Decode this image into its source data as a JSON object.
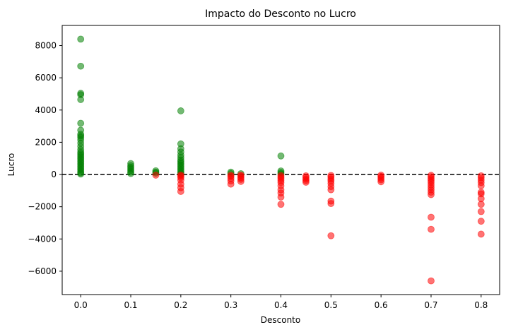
{
  "chart_data": {
    "type": "scatter",
    "title": "Impacto do Desconto no Lucro",
    "xlabel": "Desconto",
    "ylabel": "Lucro",
    "xlim": [
      -0.037,
      0.837
    ],
    "ylim": [
      -7450,
      9250
    ],
    "x_ticks": [
      0.0,
      0.1,
      0.2,
      0.3,
      0.4,
      0.5,
      0.6,
      0.7,
      0.8
    ],
    "x_tick_labels": [
      "0.0",
      "0.1",
      "0.2",
      "0.3",
      "0.4",
      "0.5",
      "0.6",
      "0.7",
      "0.8"
    ],
    "y_ticks": [
      -6000,
      -4000,
      -2000,
      0,
      2000,
      4000,
      6000,
      8000
    ],
    "y_tick_labels": [
      "−6000",
      "−4000",
      "−2000",
      "0",
      "2000",
      "4000",
      "6000",
      "8000"
    ],
    "reference_line": {
      "y": 0,
      "style": "dashed",
      "color": "#000000"
    },
    "grid": false,
    "series": [
      {
        "color": "#008000",
        "opacity": 0.55,
        "points": [
          [
            0.0,
            8400
          ],
          [
            0.0,
            6720
          ],
          [
            0.0,
            5040
          ],
          [
            0.0,
            4950
          ],
          [
            0.0,
            4650
          ],
          [
            0.0,
            3180
          ],
          [
            0.0,
            2750
          ],
          [
            0.0,
            2500
          ],
          [
            0.0,
            2400
          ],
          [
            0.0,
            2300
          ],
          [
            0.0,
            2150
          ],
          [
            0.0,
            1950
          ],
          [
            0.0,
            1750
          ],
          [
            0.0,
            1550
          ],
          [
            0.0,
            1400
          ],
          [
            0.0,
            1300
          ],
          [
            0.0,
            1200
          ],
          [
            0.0,
            1100
          ],
          [
            0.0,
            1000
          ],
          [
            0.0,
            900
          ],
          [
            0.0,
            800
          ],
          [
            0.0,
            700
          ],
          [
            0.0,
            600
          ],
          [
            0.0,
            500
          ],
          [
            0.0,
            400
          ],
          [
            0.0,
            300
          ],
          [
            0.0,
            200
          ],
          [
            0.0,
            100
          ],
          [
            0.0,
            30
          ],
          [
            0.1,
            680
          ],
          [
            0.1,
            550
          ],
          [
            0.1,
            450
          ],
          [
            0.1,
            350
          ],
          [
            0.1,
            250
          ],
          [
            0.1,
            150
          ],
          [
            0.1,
            60
          ],
          [
            0.15,
            230
          ],
          [
            0.15,
            150
          ],
          [
            0.15,
            80
          ],
          [
            0.2,
            3950
          ],
          [
            0.2,
            1900
          ],
          [
            0.2,
            1600
          ],
          [
            0.2,
            1400
          ],
          [
            0.2,
            1200
          ],
          [
            0.2,
            1050
          ],
          [
            0.2,
            900
          ],
          [
            0.2,
            800
          ],
          [
            0.2,
            700
          ],
          [
            0.2,
            600
          ],
          [
            0.2,
            500
          ],
          [
            0.2,
            400
          ],
          [
            0.2,
            300
          ],
          [
            0.2,
            200
          ],
          [
            0.2,
            100
          ],
          [
            0.2,
            30
          ],
          [
            0.3,
            150
          ],
          [
            0.3,
            60
          ],
          [
            0.32,
            50
          ],
          [
            0.4,
            1150
          ],
          [
            0.4,
            220
          ],
          [
            0.4,
            120
          ],
          [
            0.4,
            40
          ]
        ]
      },
      {
        "color": "#ff0000",
        "opacity": 0.55,
        "points": [
          [
            0.15,
            -40
          ],
          [
            0.2,
            -1050
          ],
          [
            0.2,
            -820
          ],
          [
            0.2,
            -600
          ],
          [
            0.2,
            -350
          ],
          [
            0.2,
            -200
          ],
          [
            0.2,
            -100
          ],
          [
            0.2,
            -30
          ],
          [
            0.3,
            -600
          ],
          [
            0.3,
            -400
          ],
          [
            0.3,
            -250
          ],
          [
            0.3,
            -120
          ],
          [
            0.3,
            -40
          ],
          [
            0.32,
            -430
          ],
          [
            0.32,
            -300
          ],
          [
            0.32,
            -200
          ],
          [
            0.32,
            -100
          ],
          [
            0.32,
            -30
          ],
          [
            0.4,
            -1850
          ],
          [
            0.4,
            -1400
          ],
          [
            0.4,
            -1150
          ],
          [
            0.4,
            -950
          ],
          [
            0.4,
            -700
          ],
          [
            0.4,
            -500
          ],
          [
            0.4,
            -380
          ],
          [
            0.4,
            -250
          ],
          [
            0.4,
            -150
          ],
          [
            0.4,
            -60
          ],
          [
            0.45,
            -480
          ],
          [
            0.45,
            -380
          ],
          [
            0.45,
            -280
          ],
          [
            0.45,
            -180
          ],
          [
            0.45,
            -80
          ],
          [
            0.5,
            -3800
          ],
          [
            0.5,
            -1800
          ],
          [
            0.5,
            -1650
          ],
          [
            0.5,
            -950
          ],
          [
            0.5,
            -750
          ],
          [
            0.5,
            -550
          ],
          [
            0.5,
            -400
          ],
          [
            0.5,
            -280
          ],
          [
            0.5,
            -160
          ],
          [
            0.5,
            -60
          ],
          [
            0.6,
            -450
          ],
          [
            0.6,
            -330
          ],
          [
            0.6,
            -220
          ],
          [
            0.6,
            -120
          ],
          [
            0.6,
            -40
          ],
          [
            0.7,
            -6600
          ],
          [
            0.7,
            -3400
          ],
          [
            0.7,
            -2650
          ],
          [
            0.7,
            -1250
          ],
          [
            0.7,
            -1100
          ],
          [
            0.7,
            -950
          ],
          [
            0.7,
            -800
          ],
          [
            0.7,
            -650
          ],
          [
            0.7,
            -500
          ],
          [
            0.7,
            -380
          ],
          [
            0.7,
            -260
          ],
          [
            0.7,
            -150
          ],
          [
            0.7,
            -50
          ],
          [
            0.8,
            -3700
          ],
          [
            0.8,
            -2900
          ],
          [
            0.8,
            -2300
          ],
          [
            0.8,
            -1850
          ],
          [
            0.8,
            -1500
          ],
          [
            0.8,
            -1200
          ],
          [
            0.8,
            -1100
          ],
          [
            0.8,
            -700
          ],
          [
            0.8,
            -500
          ],
          [
            0.8,
            -350
          ],
          [
            0.8,
            -200
          ],
          [
            0.8,
            -80
          ]
        ]
      }
    ]
  }
}
